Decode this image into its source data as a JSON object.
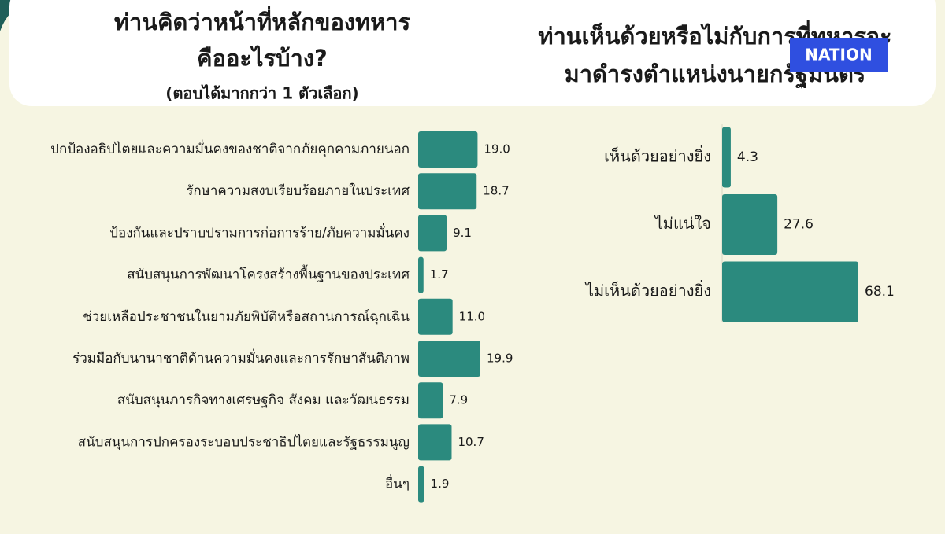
{
  "logo": "NATION",
  "chart_data": [
    {
      "type": "bar",
      "orientation": "horizontal",
      "title": [
        "ท่านคิดว่าหน้าที่หลักของทหาร",
        "คืออะไรบ้าง?"
      ],
      "subtitle": "(ตอบได้มากกว่า 1 ตัวเลือก)",
      "categories": [
        "ปกป้องอธิปไตยและความมั่นคงของชาติจากภัยคุกคามภายนอก",
        "รักษาความสงบเรียบร้อยภายในประเทศ",
        "ป้องกันและปราบปรามการก่อการร้าย/ภัยความมั่นคง",
        "สนับสนุนการพัฒนาโครงสร้างพื้นฐานของประเทศ",
        "ช่วยเหลือประชาชนในยามภัยพิบัติหรือสถานการณ์ฉุกเฉิน",
        "ร่วมมือกับนานาชาติด้านความมั่นคงและการรักษาสันติภาพ",
        "สนับสนุนภารกิจทางเศรษฐกิจ สังคม และวัฒนธรรม",
        "สนับสนุนการปกครองระบอบประชาธิปไตยและรัฐธรรมนูญ",
        "อื่นๆ"
      ],
      "values": [
        19.0,
        18.7,
        9.1,
        1.7,
        11.0,
        19.9,
        7.9,
        10.7,
        1.9
      ],
      "value_labels": [
        "19.0",
        "18.7",
        "9.1",
        "1.7",
        "11.0",
        "19.9",
        "7.9",
        "10.7",
        "1.9"
      ],
      "color": "#2b8a7e"
    },
    {
      "type": "bar",
      "orientation": "horizontal",
      "title": [
        "ท่านเห็นด้วยหรือไม่กับการที่ทหารจะ",
        "มาดำรงตำแหน่งนายกรัฐมนตรี"
      ],
      "categories": [
        "เห็นด้วยอย่างยิ่ง",
        "ไม่แน่ใจ",
        "ไม่เห็นด้วยอย่างยิ่ง"
      ],
      "values": [
        4.3,
        27.6,
        68.1
      ],
      "color": "#2b8a7e"
    }
  ]
}
